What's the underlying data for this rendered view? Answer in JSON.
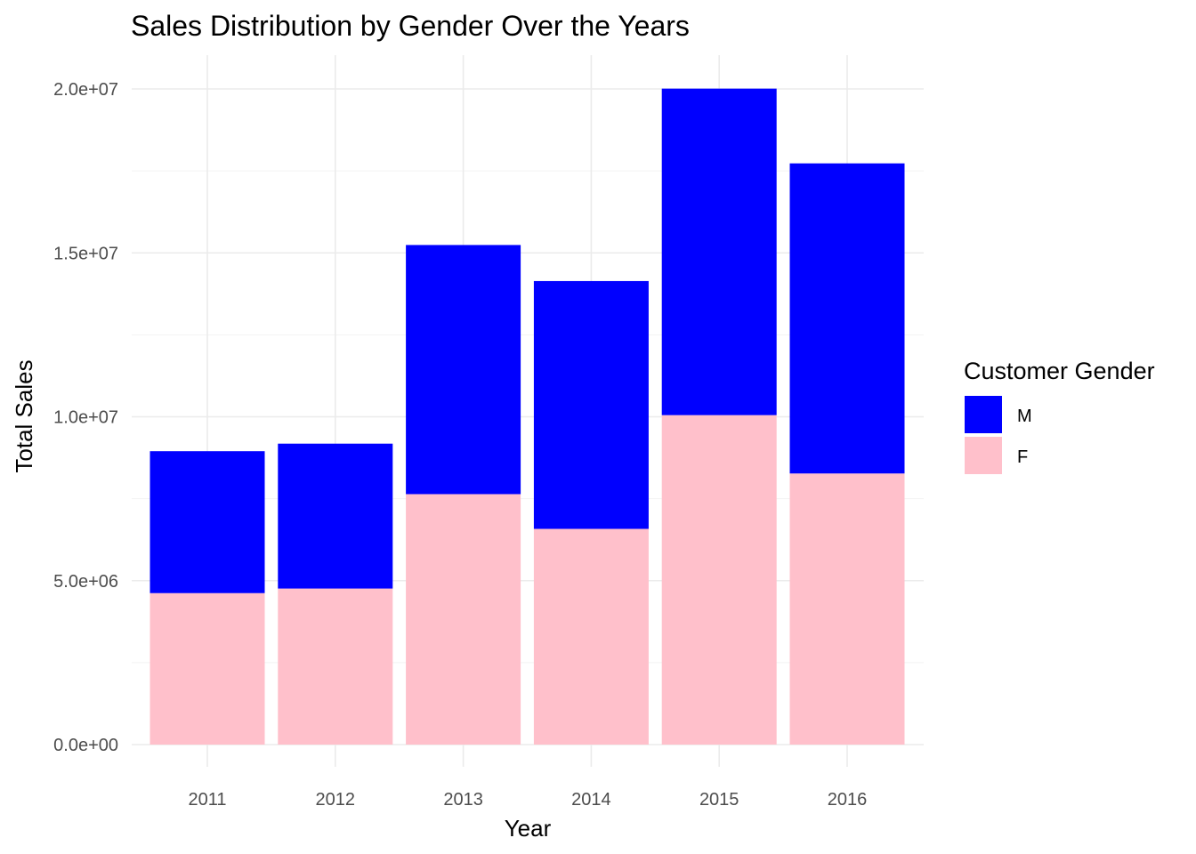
{
  "chart_data": {
    "type": "bar",
    "stacked": true,
    "title": "Sales Distribution by Gender Over the Years",
    "xlabel": "Year",
    "ylabel": "Total Sales",
    "categories": [
      "2011",
      "2012",
      "2013",
      "2014",
      "2015",
      "2016"
    ],
    "series": [
      {
        "name": "F",
        "color": "#ffc0cb",
        "values": [
          4620000,
          4760000,
          7640000,
          6580000,
          10050000,
          8270000
        ]
      },
      {
        "name": "M",
        "color": "#0000ff",
        "values": [
          4330000,
          4420000,
          7600000,
          7560000,
          9960000,
          9460000
        ]
      }
    ],
    "ylim": [
      0,
      21000000
    ],
    "y_ticks": [
      0,
      5000000,
      10000000,
      15000000,
      20000000
    ],
    "y_tick_labels": [
      "0.0e+00",
      "5.0e+06",
      "1.0e+07",
      "1.5e+07",
      "2.0e+07"
    ],
    "grid": true,
    "legend": {
      "title": "Customer Gender",
      "placement": "right",
      "entries": [
        {
          "label": "M",
          "color": "#0000ff"
        },
        {
          "label": "F",
          "color": "#ffc0cb"
        }
      ]
    }
  }
}
